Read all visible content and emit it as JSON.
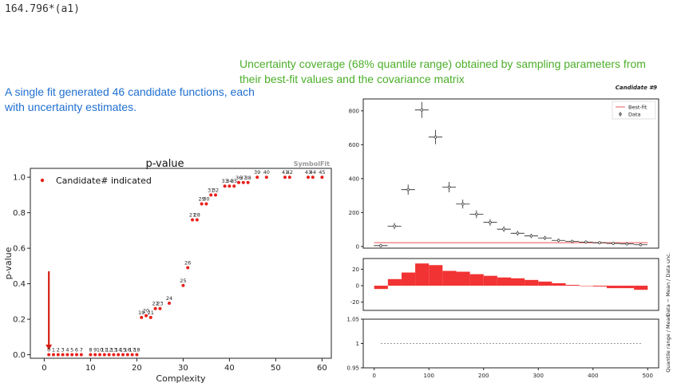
{
  "corner_label": "164.796*(a1)",
  "caption_green": "Uncertainty coverage (68% quantile range) obtained by sampling parameters from their best-fit values and the covariance matrix",
  "caption_blue": "A single fit generated 46 candidate functions, each with uncertainty estimates.",
  "chart_data": [
    {
      "type": "scatter",
      "title": "p-value",
      "watermark": "SymbolFit",
      "xlabel": "Complexity",
      "ylabel": "p-value",
      "xlim": [
        -3,
        62
      ],
      "ylim": [
        -0.02,
        1.05
      ],
      "xticks": [
        0,
        10,
        20,
        30,
        40,
        50,
        60
      ],
      "yticks": [
        0.0,
        0.2,
        0.4,
        0.6,
        0.8,
        1.0
      ],
      "legend": "Candidate# indicated",
      "legend_position": "top-left",
      "color": "#e8201a",
      "points": [
        {
          "x": 1,
          "y": 0.0,
          "label": "0"
        },
        {
          "x": 2,
          "y": 0.0,
          "label": "1"
        },
        {
          "x": 3,
          "y": 0.0,
          "label": "2"
        },
        {
          "x": 4,
          "y": 0.0,
          "label": "3"
        },
        {
          "x": 5,
          "y": 0.0,
          "label": "4"
        },
        {
          "x": 6,
          "y": 0.0,
          "label": "5"
        },
        {
          "x": 7,
          "y": 0.0,
          "label": "6"
        },
        {
          "x": 8,
          "y": 0.0,
          "label": "7"
        },
        {
          "x": 10,
          "y": 0.0,
          "label": "8"
        },
        {
          "x": 11,
          "y": 0.0,
          "label": "9"
        },
        {
          "x": 12,
          "y": 0.0,
          "label": "10"
        },
        {
          "x": 13,
          "y": 0.0,
          "label": "11"
        },
        {
          "x": 14,
          "y": 0.0,
          "label": "12"
        },
        {
          "x": 15,
          "y": 0.0,
          "label": "13"
        },
        {
          "x": 16,
          "y": 0.0,
          "label": "14"
        },
        {
          "x": 17,
          "y": 0.0,
          "label": "15"
        },
        {
          "x": 18,
          "y": 0.0,
          "label": "16"
        },
        {
          "x": 19,
          "y": 0.0,
          "label": "17"
        },
        {
          "x": 20,
          "y": 0.0,
          "label": "18"
        },
        {
          "x": 21,
          "y": 0.21,
          "label": "19"
        },
        {
          "x": 22,
          "y": 0.22,
          "label": "20"
        },
        {
          "x": 23,
          "y": 0.21,
          "label": "21"
        },
        {
          "x": 24,
          "y": 0.26,
          "label": "22"
        },
        {
          "x": 25,
          "y": 0.26,
          "label": "23"
        },
        {
          "x": 27,
          "y": 0.29,
          "label": "24"
        },
        {
          "x": 30,
          "y": 0.39,
          "label": "25"
        },
        {
          "x": 31,
          "y": 0.49,
          "label": "26"
        },
        {
          "x": 32,
          "y": 0.76,
          "label": "27"
        },
        {
          "x": 33,
          "y": 0.76,
          "label": "28"
        },
        {
          "x": 34,
          "y": 0.85,
          "label": "29"
        },
        {
          "x": 35,
          "y": 0.85,
          "label": "30"
        },
        {
          "x": 36,
          "y": 0.9,
          "label": "31"
        },
        {
          "x": 37,
          "y": 0.9,
          "label": "32"
        },
        {
          "x": 39,
          "y": 0.95,
          "label": "33"
        },
        {
          "x": 40,
          "y": 0.95,
          "label": "34"
        },
        {
          "x": 41,
          "y": 0.95,
          "label": "35"
        },
        {
          "x": 42,
          "y": 0.97,
          "label": "36"
        },
        {
          "x": 43,
          "y": 0.97,
          "label": "37"
        },
        {
          "x": 44,
          "y": 0.97,
          "label": "38"
        },
        {
          "x": 46,
          "y": 1.0,
          "label": "39"
        },
        {
          "x": 48,
          "y": 1.0,
          "label": "40"
        },
        {
          "x": 52,
          "y": 1.0,
          "label": "41"
        },
        {
          "x": 53,
          "y": 1.0,
          "label": "42"
        },
        {
          "x": 57,
          "y": 1.0,
          "label": "43"
        },
        {
          "x": 58,
          "y": 1.0,
          "label": "44"
        },
        {
          "x": 60,
          "y": 1.0,
          "label": "45"
        }
      ],
      "annotation_arrow": {
        "x": 1,
        "y_from": 0.47,
        "y_to": 0.03
      }
    },
    {
      "type": "scatter",
      "title": "Candidate #9",
      "top_panel": {
        "xlim": [
          -20,
          520
        ],
        "ylim": [
          -10,
          870
        ],
        "yticks": [
          0,
          200,
          400,
          600,
          800
        ],
        "legend": [
          "Best-fit",
          "Data"
        ],
        "legend_position": "top-right",
        "bestfit_y": 22,
        "data": [
          {
            "x": 12,
            "y": 5
          },
          {
            "x": 37,
            "y": 120
          },
          {
            "x": 62,
            "y": 335
          },
          {
            "x": 87,
            "y": 805
          },
          {
            "x": 112,
            "y": 645
          },
          {
            "x": 137,
            "y": 350
          },
          {
            "x": 162,
            "y": 250
          },
          {
            "x": 187,
            "y": 190
          },
          {
            "x": 212,
            "y": 142
          },
          {
            "x": 237,
            "y": 102
          },
          {
            "x": 262,
            "y": 78
          },
          {
            "x": 287,
            "y": 62
          },
          {
            "x": 312,
            "y": 50
          },
          {
            "x": 337,
            "y": 36
          },
          {
            "x": 362,
            "y": 30
          },
          {
            "x": 387,
            "y": 26
          },
          {
            "x": 412,
            "y": 22
          },
          {
            "x": 437,
            "y": 18
          },
          {
            "x": 462,
            "y": 15
          },
          {
            "x": 487,
            "y": 10
          }
        ],
        "xerr": 12.5
      },
      "middle_panel": {
        "ylabel": "Data − Mean / Data unc.",
        "ylim": [
          -30,
          33
        ],
        "yticks": [
          -20,
          0,
          20
        ],
        "bins": [
          0,
          25,
          50,
          75,
          100,
          125,
          150,
          175,
          200,
          225,
          250,
          275,
          300,
          325,
          350,
          375,
          400,
          425,
          450,
          475,
          500
        ],
        "values": [
          -4,
          8,
          16,
          27,
          25,
          18,
          17,
          14,
          12,
          10,
          9,
          7,
          5,
          3,
          1,
          0,
          -1,
          -3,
          -3,
          -5
        ]
      },
      "bottom_panel": {
        "ylabel": "Quantile range / Mean",
        "ylim": [
          0.95,
          1.05
        ],
        "yticks": [
          0.95,
          1,
          1.05
        ],
        "line_y": 1.0
      },
      "xticks": [
        0,
        100,
        200,
        300,
        400,
        500
      ]
    }
  ]
}
